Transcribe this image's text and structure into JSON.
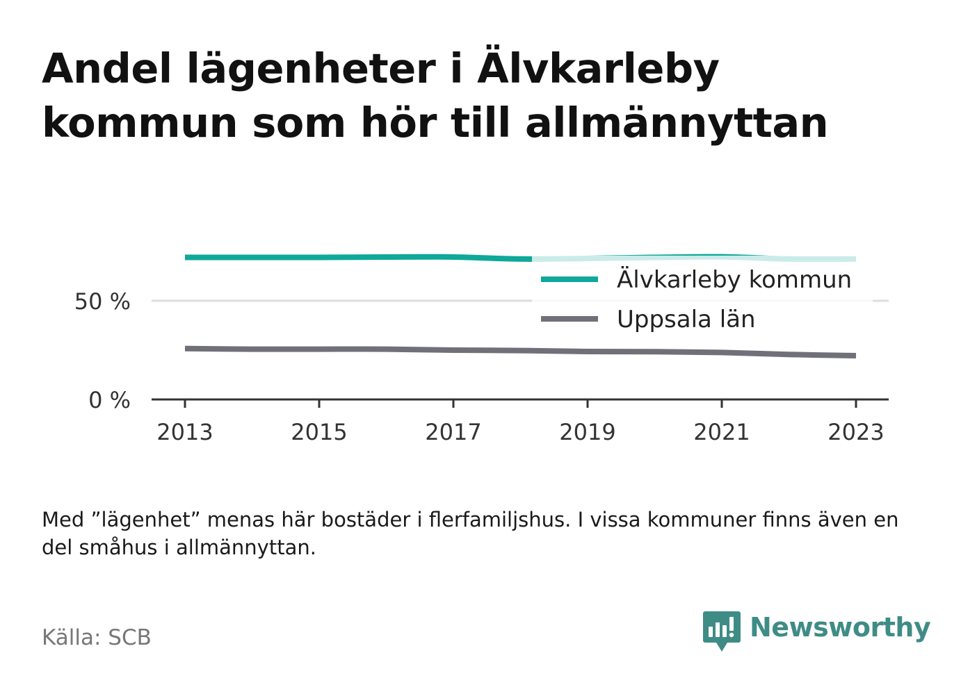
{
  "title": "Andel lägenheter i Älvkarleby kommun som hör till allmännyttan",
  "note": "Med ”lägenhet” menas här bostäder i flerfamiljshus. I vissa kommuner finns även en del småhus i allmännyttan.",
  "source": "Källa: SCB",
  "brand": {
    "name": "Newsworthy",
    "logo_icon": "bar-chart-speech-bubble-icon",
    "color": "#3f8c86"
  },
  "chart_data": {
    "type": "line",
    "x": [
      2013,
      2014,
      2015,
      2016,
      2017,
      2018,
      2019,
      2020,
      2021,
      2022,
      2023
    ],
    "x_ticks": [
      "2013",
      "2015",
      "2017",
      "2019",
      "2021",
      "2023"
    ],
    "y_ticks": [
      "0 %",
      "50 %"
    ],
    "ylim": [
      0,
      100
    ],
    "grid": "horizontal",
    "legend_position": "top-right",
    "series": [
      {
        "name": "Älvkarleby kommun",
        "color": "#0fa89a",
        "values": [
          72,
          72,
          72,
          72.2,
          72.2,
          71.2,
          71.5,
          72,
          72.3,
          71.2,
          71.2
        ]
      },
      {
        "name": "Uppsala län",
        "color": "#707078",
        "values": [
          25.8,
          25.5,
          25.5,
          25.5,
          25,
          24.8,
          24.3,
          24.2,
          23.8,
          22.8,
          22.2
        ]
      }
    ]
  }
}
